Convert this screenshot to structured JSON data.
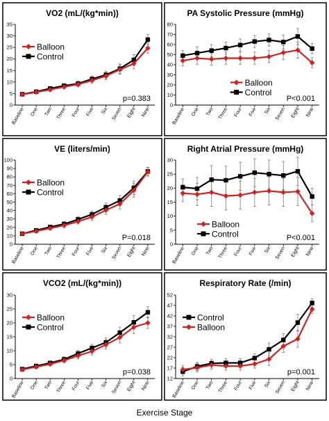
{
  "figure": {
    "xlabel": "Exercise Stage"
  },
  "colors": {
    "balloon": "#d42020",
    "control": "#000000"
  },
  "chart_data": [
    {
      "type": "line",
      "title": "VO2 (mL/(kg*min))",
      "categories": [
        "Baseline",
        "One",
        "Two",
        "Three",
        "Four",
        "Five",
        "Six",
        "Seven",
        "Eight",
        "Nine"
      ],
      "ylim": [
        0,
        35
      ],
      "yticks": [
        0,
        5,
        10,
        15,
        20,
        25,
        30,
        35
      ],
      "series": [
        {
          "name": "Balloon",
          "values": [
            4.6,
            5.6,
            6.7,
            7.9,
            9.0,
            10.7,
            12.6,
            15.4,
            18.0,
            24.7
          ]
        },
        {
          "name": "Control",
          "values": [
            4.7,
            5.8,
            7.2,
            8.4,
            9.3,
            11.3,
            13.1,
            15.8,
            19.6,
            28.4
          ]
        }
      ],
      "errors": [
        0.4,
        0.6,
        0.8,
        0.9,
        1.1,
        1.3,
        1.6,
        2.0,
        2.3,
        2.2
      ],
      "legend": "upper-left",
      "legend_order": [
        "Balloon",
        "Control"
      ],
      "annotation": "p=0.383",
      "annotation_pos": "bottom-right"
    },
    {
      "type": "line",
      "title": "PA Systolic Pressure (mmHg)",
      "categories": [
        "Baseline",
        "One",
        "Two",
        "Three",
        "Four",
        "Five",
        "Six",
        "Seven",
        "Eight",
        "Nine"
      ],
      "ylim": [
        0,
        80
      ],
      "yticks": [
        0,
        10,
        20,
        30,
        40,
        50,
        60,
        70,
        80
      ],
      "series": [
        {
          "name": "Balloon",
          "values": [
            44.0,
            46.5,
            45.5,
            46.5,
            46.5,
            46.5,
            48.0,
            52.0,
            54.5,
            42.0
          ]
        },
        {
          "name": "Control",
          "values": [
            49.0,
            51.5,
            54.0,
            56.5,
            59.5,
            63.0,
            64.5,
            62.5,
            68.0,
            56.0
          ]
        }
      ],
      "errors": [
        5,
        6,
        6,
        6,
        6,
        6,
        6,
        7,
        8,
        5
      ],
      "legend": "lower-right",
      "legend_order": [
        "Balloon",
        "Control"
      ],
      "annotation": "P<0.001",
      "annotation_pos": "bottom-right"
    },
    {
      "type": "line",
      "title": "VE (liters/min)",
      "categories": [
        "Baseline",
        "One",
        "Two",
        "Three",
        "Four",
        "Five",
        "Six",
        "Seven",
        "Eight",
        "Nine"
      ],
      "ylim": [
        0,
        100
      ],
      "yticks": [
        0,
        10,
        20,
        30,
        40,
        50,
        60,
        70,
        80,
        90,
        100
      ],
      "series": [
        {
          "name": "Balloon",
          "values": [
            12.5,
            15.5,
            19.0,
            22.5,
            27.0,
            32.5,
            40.5,
            48.0,
            64.0,
            86.0
          ]
        },
        {
          "name": "Control",
          "values": [
            12.5,
            16.5,
            20.5,
            24.0,
            29.5,
            35.5,
            44.0,
            52.0,
            67.0,
            86.5
          ]
        }
      ],
      "errors": [
        1.5,
        2,
        2,
        3,
        3,
        4,
        5,
        6,
        8,
        5
      ],
      "legend": "upper-left",
      "legend_order": [
        "Balloon",
        "Control"
      ],
      "annotation": "P=0.018",
      "annotation_pos": "bottom-right"
    },
    {
      "type": "line",
      "title": "Right Atrial Pressure (mmHg)",
      "categories": [
        "Baseline",
        "One",
        "Two",
        "Three",
        "Four",
        "Five",
        "Six",
        "Seven",
        "Eight",
        "Nine"
      ],
      "ylim": [
        0,
        30
      ],
      "yticks": [
        0,
        5,
        10,
        15,
        20,
        25,
        30
      ],
      "series": [
        {
          "name": "Balloon",
          "values": [
            18.2,
            17.8,
            18.5,
            17.2,
            17.5,
            18.5,
            19.0,
            18.5,
            18.8,
            11.0
          ]
        },
        {
          "name": "Control",
          "values": [
            20.3,
            19.8,
            23.0,
            22.8,
            24.2,
            25.5,
            25.0,
            24.5,
            26.0,
            17.0
          ]
        }
      ],
      "errors": [
        3,
        4,
        5,
        5,
        5,
        5,
        5,
        5,
        5,
        3
      ],
      "legend": "lower-center",
      "legend_order": [
        "Balloon",
        "Control"
      ],
      "annotation": "P<0.001",
      "annotation_pos": "bottom-right"
    },
    {
      "type": "line",
      "title": "VCO2 (mL/(kg*min))",
      "categories": [
        "Baseline",
        "One",
        "Two",
        "Three",
        "Four",
        "Five",
        "Six",
        "Seven",
        "Eight",
        "Nine"
      ],
      "ylim": [
        0,
        30
      ],
      "yticks": [
        0,
        5,
        10,
        15,
        20,
        25,
        30
      ],
      "series": [
        {
          "name": "Balloon",
          "values": [
            3.2,
            4.2,
            5.2,
            6.5,
            8.2,
            9.8,
            12.2,
            14.8,
            18.5,
            20.0
          ]
        },
        {
          "name": "Control",
          "values": [
            3.4,
            4.5,
            5.6,
            6.9,
            9.0,
            11.0,
            13.0,
            16.5,
            20.2,
            23.8
          ]
        }
      ],
      "errors": [
        0.5,
        0.6,
        0.7,
        0.9,
        1.1,
        1.3,
        1.6,
        2.0,
        2.4,
        2.0
      ],
      "legend": "upper-left",
      "legend_order": [
        "Balloon",
        "Control"
      ],
      "annotation": "p=0.038",
      "annotation_pos": "bottom-right"
    },
    {
      "type": "line",
      "title": "Respiratory Rate (/min)",
      "categories": [
        "Baseline",
        "One",
        "Two",
        "Three",
        "Four",
        "Five",
        "Six",
        "Seven",
        "Eight",
        "Nine"
      ],
      "ylim": [
        12,
        52
      ],
      "yticks": [
        12,
        17,
        22,
        27,
        32,
        37,
        42,
        47,
        52
      ],
      "series": [
        {
          "name": "Balloon",
          "values": [
            16.3,
            17.2,
            18.5,
            18.0,
            18.0,
            19.0,
            21.3,
            27.5,
            31.0,
            45.2
          ]
        },
        {
          "name": "Control",
          "values": [
            15.3,
            17.8,
            19.3,
            19.5,
            19.5,
            21.8,
            26.0,
            30.5,
            38.8,
            48.2
          ]
        }
      ],
      "errors": [
        2,
        2,
        2,
        2,
        2,
        2,
        3,
        3,
        4,
        2
      ],
      "legend": "upper-left",
      "legend_order": [
        "Control",
        "Balloon"
      ],
      "annotation": "p=0.001",
      "annotation_pos": "bottom-right"
    }
  ]
}
